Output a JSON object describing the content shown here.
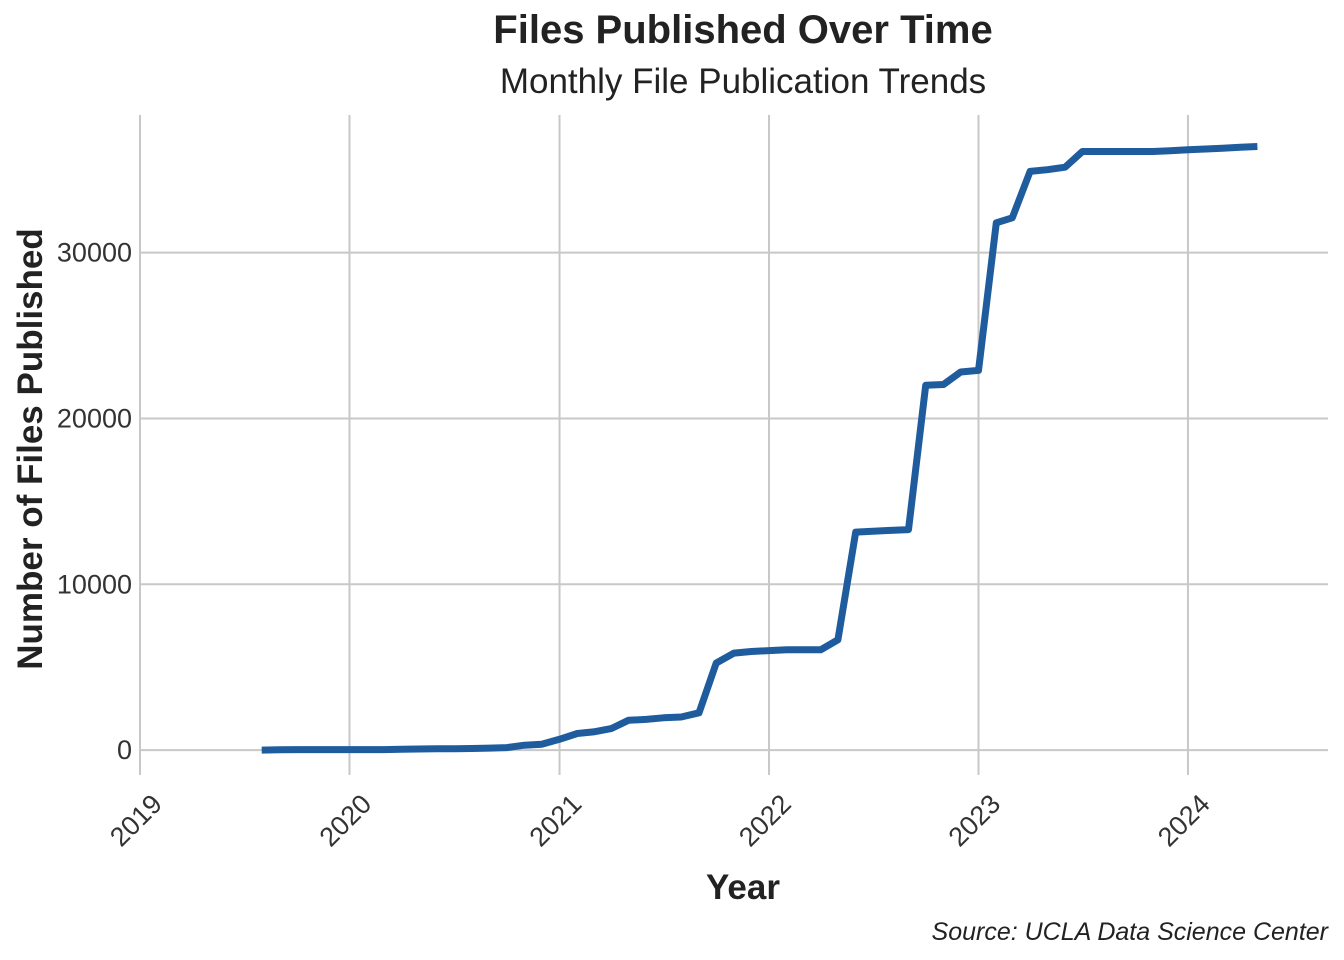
{
  "chart_data": {
    "type": "line",
    "title": "Files Published Over Time",
    "subtitle": "Monthly File Publication Trends",
    "xlabel": "Year",
    "ylabel": "Number of Files Published",
    "caption": "Source: UCLA Data Science Center",
    "x_ticks": [
      "2019",
      "2020",
      "2021",
      "2022",
      "2023",
      "2024"
    ],
    "y_ticks": [
      "0",
      "10000",
      "20000",
      "30000"
    ],
    "xlim": [
      "2019-01-01",
      "2024-09-01"
    ],
    "ylim": [
      -1500,
      38300
    ],
    "grid": true,
    "colors": {
      "line": "#1f5c9e",
      "grid": "#c8c8c8"
    },
    "series": [
      {
        "points": [
          [
            "2019-08-01",
            0
          ],
          [
            "2019-09-01",
            20
          ],
          [
            "2019-10-01",
            30
          ],
          [
            "2019-11-01",
            30
          ],
          [
            "2019-12-01",
            30
          ],
          [
            "2020-01-01",
            30
          ],
          [
            "2020-02-01",
            30
          ],
          [
            "2020-03-01",
            30
          ],
          [
            "2020-04-01",
            50
          ],
          [
            "2020-05-01",
            70
          ],
          [
            "2020-06-01",
            80
          ],
          [
            "2020-07-01",
            80
          ],
          [
            "2020-08-01",
            100
          ],
          [
            "2020-09-01",
            120
          ],
          [
            "2020-10-01",
            150
          ],
          [
            "2020-11-01",
            300
          ],
          [
            "2020-12-01",
            350
          ],
          [
            "2021-01-01",
            650
          ],
          [
            "2021-02-01",
            1000
          ],
          [
            "2021-03-01",
            1100
          ],
          [
            "2021-04-01",
            1300
          ],
          [
            "2021-05-01",
            1800
          ],
          [
            "2021-06-01",
            1850
          ],
          [
            "2021-07-01",
            1950
          ],
          [
            "2021-08-01",
            2000
          ],
          [
            "2021-09-01",
            2250
          ],
          [
            "2021-10-01",
            5250
          ],
          [
            "2021-11-01",
            5850
          ],
          [
            "2021-12-01",
            5950
          ],
          [
            "2022-01-01",
            6000
          ],
          [
            "2022-02-01",
            6050
          ],
          [
            "2022-03-01",
            6050
          ],
          [
            "2022-04-01",
            6050
          ],
          [
            "2022-05-01",
            6650
          ],
          [
            "2022-06-01",
            13150
          ],
          [
            "2022-07-01",
            13200
          ],
          [
            "2022-08-01",
            13250
          ],
          [
            "2022-09-01",
            13300
          ],
          [
            "2022-10-01",
            22000
          ],
          [
            "2022-11-01",
            22050
          ],
          [
            "2022-12-01",
            22800
          ],
          [
            "2023-01-01",
            22900
          ],
          [
            "2023-02-01",
            31800
          ],
          [
            "2023-03-01",
            32100
          ],
          [
            "2023-04-01",
            34900
          ],
          [
            "2023-05-01",
            35000
          ],
          [
            "2023-06-01",
            35150
          ],
          [
            "2023-07-01",
            36100
          ],
          [
            "2023-08-01",
            36100
          ],
          [
            "2023-09-01",
            36100
          ],
          [
            "2023-10-01",
            36100
          ],
          [
            "2023-11-01",
            36100
          ],
          [
            "2023-12-01",
            36150
          ],
          [
            "2024-01-01",
            36200
          ],
          [
            "2024-02-01",
            36250
          ],
          [
            "2024-03-01",
            36300
          ],
          [
            "2024-04-01",
            36350
          ],
          [
            "2024-05-01",
            36400
          ]
        ]
      }
    ]
  }
}
